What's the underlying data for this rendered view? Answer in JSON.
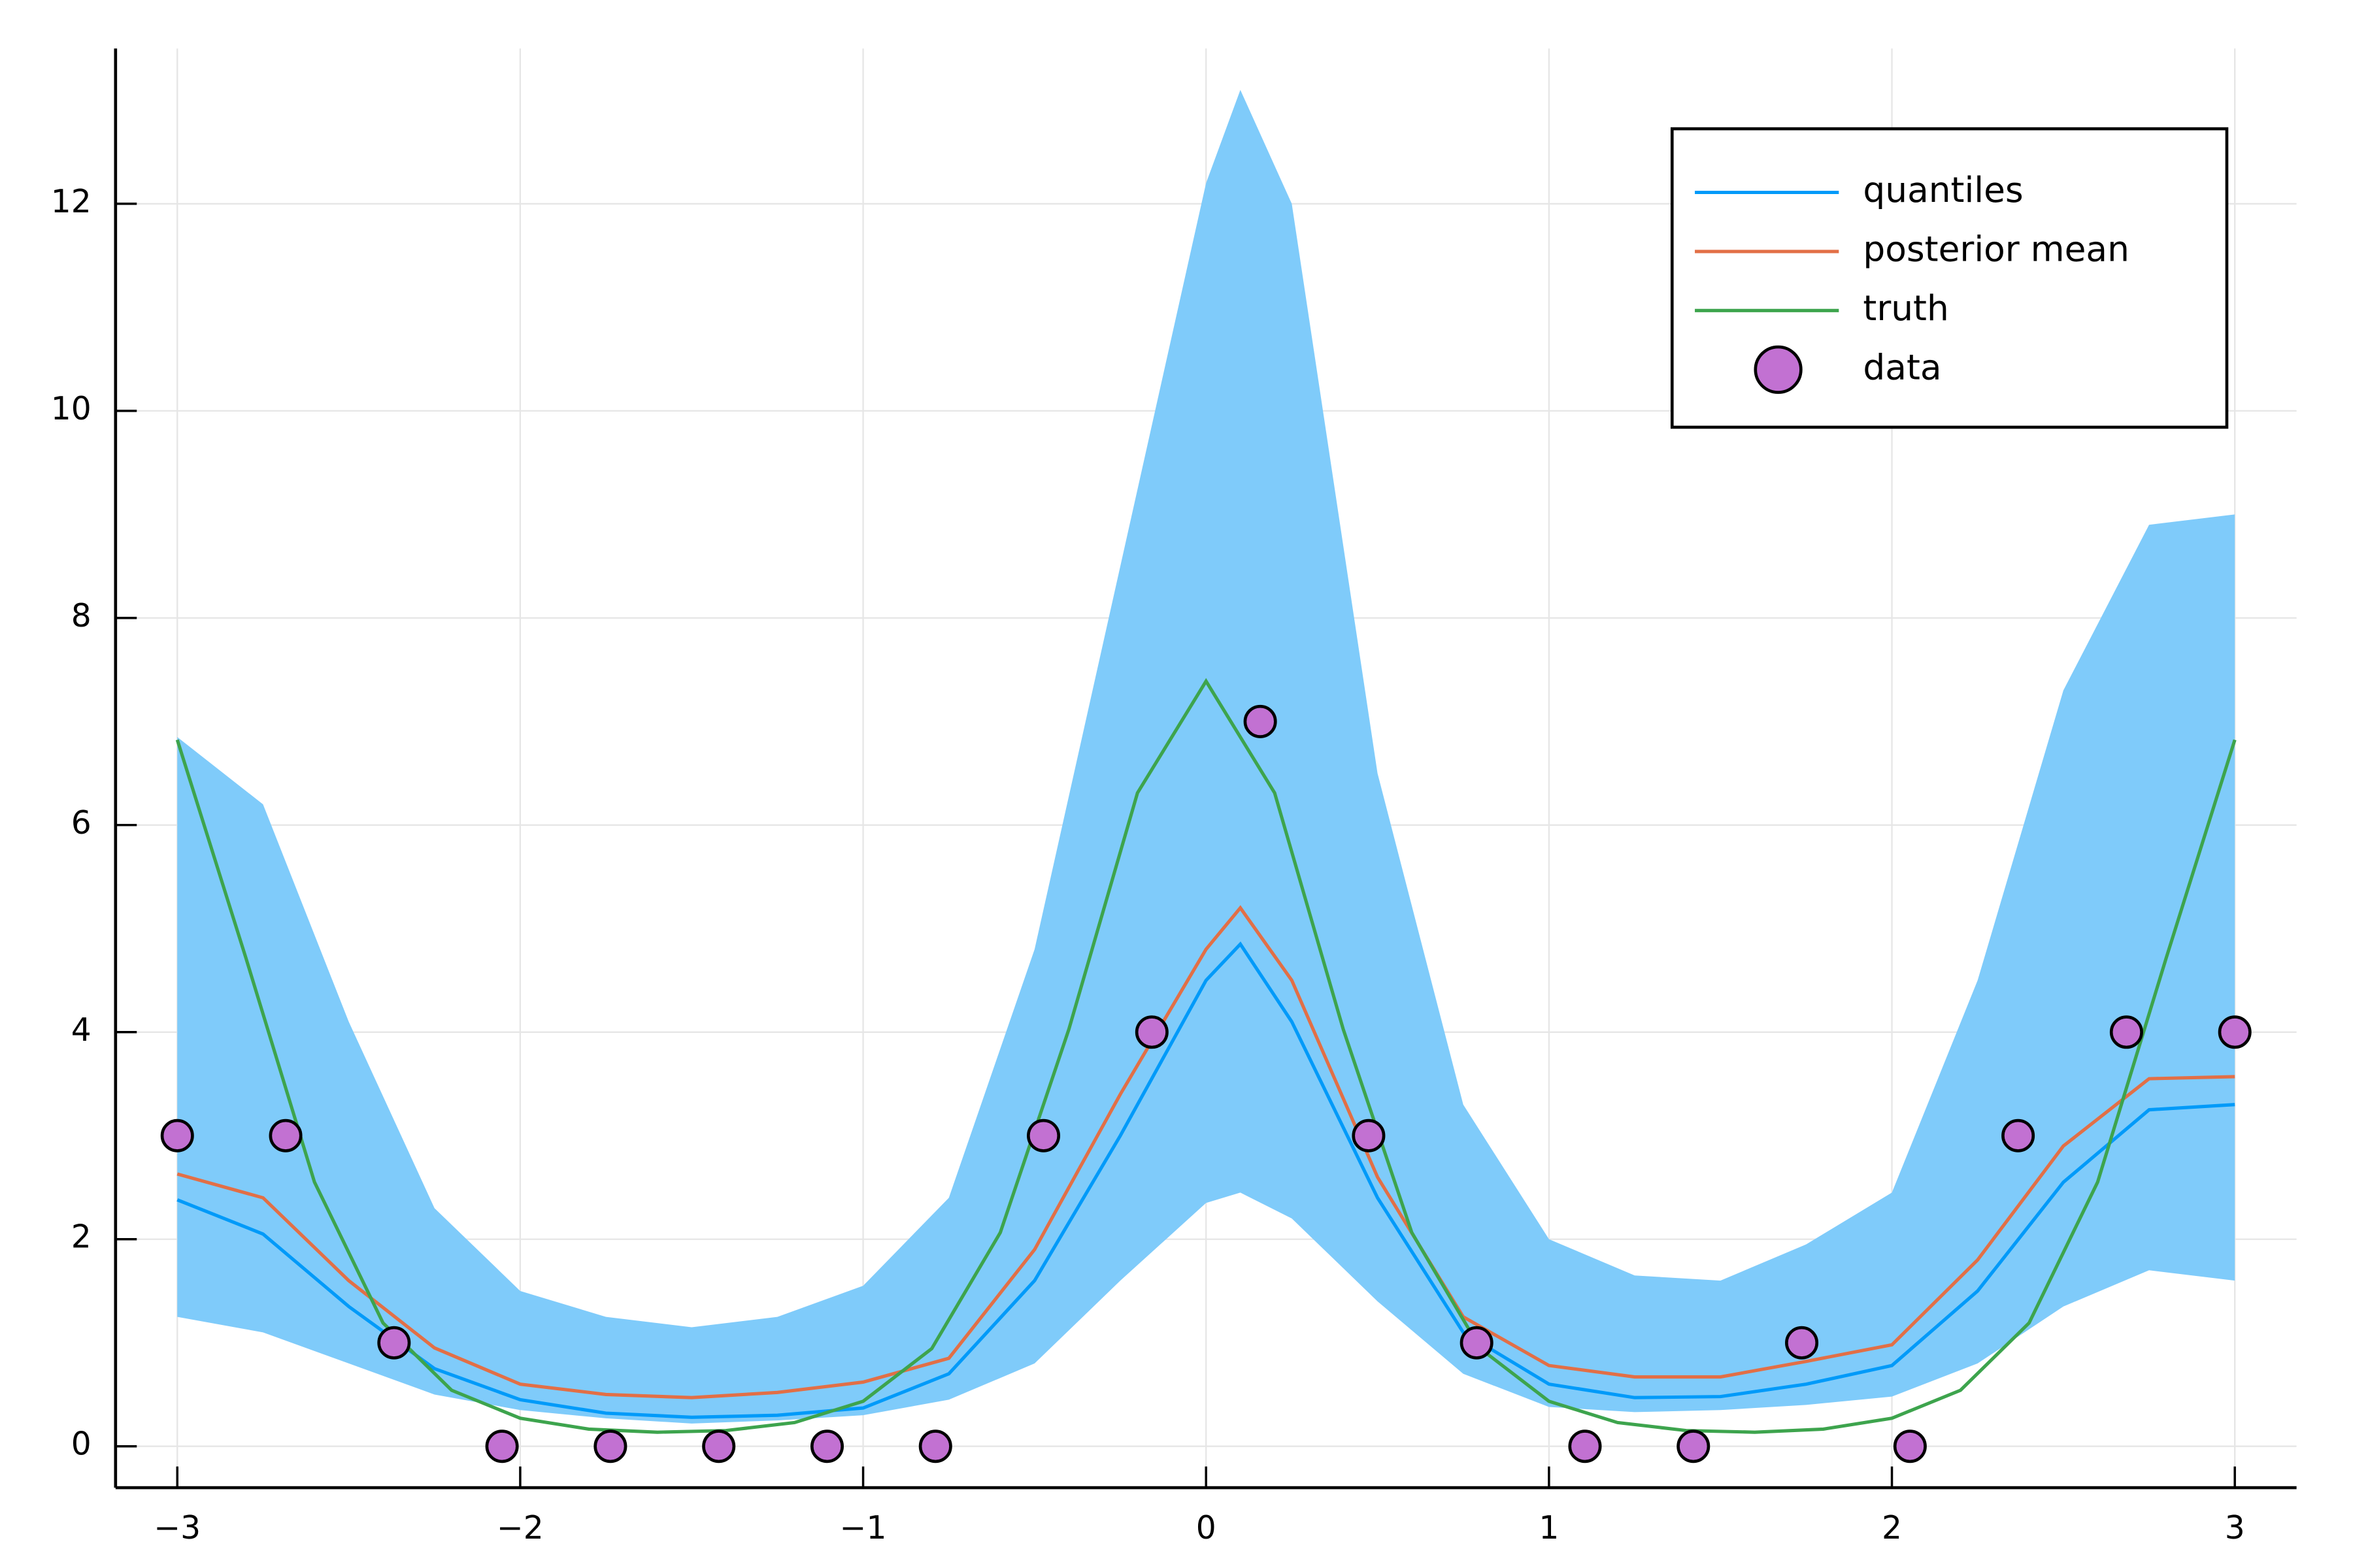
{
  "chart_data": {
    "type": "line",
    "xlim": [
      -3.18,
      3.18
    ],
    "ylim": [
      -0.4,
      13.5
    ],
    "xticks": [
      {
        "value": -3,
        "label": "−3"
      },
      {
        "value": -2,
        "label": "−2"
      },
      {
        "value": -1,
        "label": "−1"
      },
      0,
      1,
      2,
      3
    ],
    "yticks": [
      0,
      2,
      4,
      6,
      8,
      10,
      12
    ],
    "grid": true,
    "legend": "top-right",
    "band_color": "#7fcbfa",
    "series": [
      {
        "name": "quantiles",
        "color": "#009af9",
        "x": [
          -3,
          -2.75,
          -2.5,
          -2.25,
          -2,
          -1.75,
          -1.5,
          -1.25,
          -1,
          -0.75,
          -0.5,
          -0.25,
          0,
          0.1,
          0.25,
          0.5,
          0.75,
          1,
          1.25,
          1.5,
          1.75,
          2,
          2.25,
          2.5,
          2.75,
          3
        ],
        "values": [
          2.38,
          2.05,
          1.35,
          0.75,
          0.45,
          0.32,
          0.28,
          0.3,
          0.37,
          0.7,
          1.6,
          3.0,
          4.5,
          4.85,
          4.1,
          2.4,
          1.1,
          0.6,
          0.47,
          0.48,
          0.6,
          0.78,
          1.5,
          2.55,
          3.25,
          3.3
        ],
        "band_lower": [
          1.25,
          1.1,
          0.8,
          0.5,
          0.35,
          0.27,
          0.22,
          0.25,
          0.3,
          0.45,
          0.8,
          1.6,
          2.35,
          2.45,
          2.2,
          1.4,
          0.7,
          0.38,
          0.33,
          0.35,
          0.4,
          0.48,
          0.8,
          1.35,
          1.7,
          1.6
        ],
        "band_upper": [
          6.85,
          6.2,
          4.1,
          2.3,
          1.5,
          1.25,
          1.15,
          1.25,
          1.55,
          2.4,
          4.8,
          8.5,
          12.2,
          13.1,
          12.0,
          6.5,
          3.3,
          2.0,
          1.65,
          1.6,
          1.95,
          2.45,
          4.5,
          7.3,
          8.9,
          9.0
        ]
      },
      {
        "name": "posterior mean",
        "color": "#e26f46",
        "x": [
          -3,
          -2.75,
          -2.5,
          -2.25,
          -2,
          -1.75,
          -1.5,
          -1.25,
          -1,
          -0.75,
          -0.5,
          -0.25,
          0,
          0.1,
          0.25,
          0.5,
          0.75,
          1,
          1.25,
          1.5,
          1.75,
          2,
          2.25,
          2.5,
          2.75,
          3
        ],
        "values": [
          2.63,
          2.4,
          1.6,
          0.95,
          0.6,
          0.5,
          0.47,
          0.52,
          0.62,
          0.85,
          1.9,
          3.4,
          4.8,
          5.2,
          4.5,
          2.6,
          1.25,
          0.78,
          0.67,
          0.67,
          0.82,
          0.98,
          1.8,
          2.9,
          3.55,
          3.57
        ]
      },
      {
        "name": "truth",
        "color": "#3da44d",
        "x": [
          -3,
          -2.8,
          -2.6,
          -2.4,
          -2.2,
          -2,
          -1.8,
          -1.6,
          -1.4,
          -1.2,
          -1,
          -0.8,
          -0.6,
          -0.4,
          -0.2,
          0,
          0.2,
          0.4,
          0.6,
          0.8,
          1,
          1.2,
          1.4,
          1.6,
          1.8,
          2,
          2.2,
          2.4,
          2.6,
          2.8,
          3
        ],
        "values": [
          6.823,
          4.717,
          2.552,
          1.191,
          0.541,
          0.271,
          0.166,
          0.136,
          0.152,
          0.229,
          0.435,
          0.943,
          2.064,
          4.028,
          6.31,
          7.389,
          6.31,
          4.028,
          2.064,
          0.943,
          0.435,
          0.229,
          0.152,
          0.136,
          0.166,
          0.271,
          0.541,
          1.191,
          2.552,
          4.717,
          6.823
        ]
      },
      {
        "name": "data",
        "color": "#c271d2",
        "type": "scatter",
        "x": [
          -3,
          -2.684,
          -2.368,
          -2.053,
          -1.737,
          -1.421,
          -1.105,
          -0.789,
          -0.474,
          -0.158,
          0.158,
          0.474,
          0.789,
          1.105,
          1.421,
          1.737,
          2.053,
          2.368,
          2.684,
          3
        ],
        "values": [
          3,
          3,
          1,
          0,
          0,
          0,
          0,
          0,
          3,
          4,
          7,
          3,
          1,
          0,
          0,
          1,
          0,
          3,
          4,
          4
        ]
      }
    ]
  }
}
